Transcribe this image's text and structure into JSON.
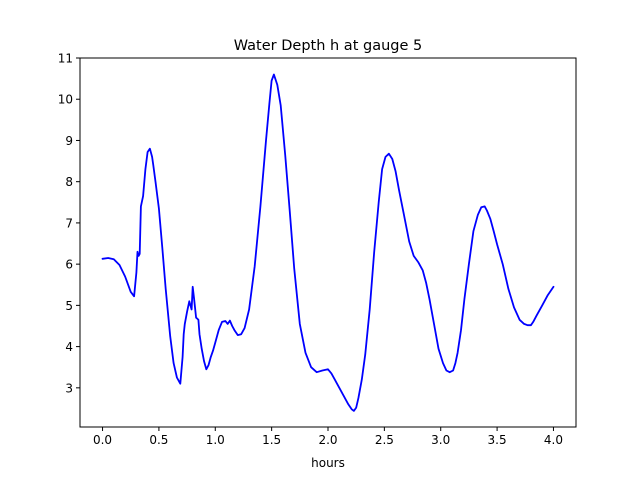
{
  "chart_data": {
    "type": "line",
    "title": "Water Depth h at gauge 5",
    "xlabel": "hours",
    "ylabel": "",
    "xlim": [
      -0.2,
      4.2
    ],
    "ylim": [
      2.05,
      11.0
    ],
    "xticks": [
      0.0,
      0.5,
      1.0,
      1.5,
      2.0,
      2.5,
      3.0,
      3.5,
      4.0
    ],
    "xtick_labels": [
      "0.0",
      "0.5",
      "1.0",
      "1.5",
      "2.0",
      "2.5",
      "3.0",
      "3.5",
      "4.0"
    ],
    "yticks": [
      3,
      4,
      5,
      6,
      7,
      8,
      9,
      10,
      11
    ],
    "ytick_labels": [
      "3",
      "4",
      "5",
      "6",
      "7",
      "8",
      "9",
      "10",
      "11"
    ],
    "grid": false,
    "series": [
      {
        "color": "#0000ff",
        "x": [
          0.0,
          0.05,
          0.1,
          0.15,
          0.2,
          0.25,
          0.28,
          0.3,
          0.31,
          0.32,
          0.33,
          0.34,
          0.36,
          0.38,
          0.4,
          0.42,
          0.44,
          0.45,
          0.47,
          0.5,
          0.53,
          0.56,
          0.6,
          0.63,
          0.66,
          0.69,
          0.71,
          0.72,
          0.73,
          0.75,
          0.77,
          0.79,
          0.8,
          0.81,
          0.82,
          0.83,
          0.84,
          0.85,
          0.86,
          0.88,
          0.9,
          0.92,
          0.94,
          0.96,
          0.98,
          1.0,
          1.03,
          1.06,
          1.09,
          1.11,
          1.13,
          1.15,
          1.17,
          1.2,
          1.23,
          1.26,
          1.3,
          1.35,
          1.4,
          1.45,
          1.48,
          1.5,
          1.52,
          1.55,
          1.58,
          1.62,
          1.66,
          1.7,
          1.75,
          1.8,
          1.85,
          1.9,
          1.95,
          2.0,
          2.03,
          2.06,
          2.1,
          2.14,
          2.18,
          2.21,
          2.23,
          2.25,
          2.27,
          2.3,
          2.33,
          2.37,
          2.41,
          2.45,
          2.48,
          2.51,
          2.54,
          2.57,
          2.6,
          2.63,
          2.67,
          2.72,
          2.76,
          2.8,
          2.84,
          2.87,
          2.9,
          2.94,
          2.98,
          3.02,
          3.05,
          3.08,
          3.11,
          3.13,
          3.15,
          3.18,
          3.21,
          3.25,
          3.29,
          3.33,
          3.36,
          3.39,
          3.41,
          3.44,
          3.47,
          3.5,
          3.55,
          3.6,
          3.65,
          3.7,
          3.74,
          3.77,
          3.8,
          3.82,
          3.85,
          3.9,
          3.95,
          4.0
        ],
        "y": [
          6.13,
          6.15,
          6.12,
          5.98,
          5.7,
          5.33,
          5.22,
          5.8,
          6.3,
          6.2,
          6.25,
          7.4,
          7.65,
          8.3,
          8.72,
          8.8,
          8.6,
          8.4,
          8.0,
          7.35,
          6.4,
          5.4,
          4.25,
          3.6,
          3.25,
          3.1,
          3.75,
          4.3,
          4.55,
          4.85,
          5.1,
          4.9,
          5.45,
          5.2,
          4.95,
          4.7,
          4.68,
          4.65,
          4.3,
          3.95,
          3.65,
          3.45,
          3.55,
          3.75,
          3.9,
          4.1,
          4.4,
          4.6,
          4.62,
          4.55,
          4.63,
          4.5,
          4.4,
          4.28,
          4.3,
          4.45,
          4.9,
          5.95,
          7.4,
          9.0,
          9.9,
          10.45,
          10.6,
          10.35,
          9.85,
          8.65,
          7.3,
          5.9,
          4.55,
          3.85,
          3.5,
          3.38,
          3.42,
          3.45,
          3.35,
          3.2,
          3.0,
          2.8,
          2.6,
          2.48,
          2.44,
          2.52,
          2.75,
          3.2,
          3.8,
          4.9,
          6.3,
          7.5,
          8.3,
          8.6,
          8.68,
          8.55,
          8.25,
          7.8,
          7.25,
          6.55,
          6.2,
          6.05,
          5.85,
          5.55,
          5.15,
          4.55,
          3.95,
          3.6,
          3.42,
          3.38,
          3.42,
          3.6,
          3.85,
          4.4,
          5.15,
          6.0,
          6.8,
          7.2,
          7.38,
          7.4,
          7.3,
          7.1,
          6.8,
          6.48,
          6.0,
          5.4,
          4.95,
          4.65,
          4.55,
          4.52,
          4.52,
          4.6,
          4.75,
          5.0,
          5.25,
          5.45
        ]
      }
    ]
  }
}
